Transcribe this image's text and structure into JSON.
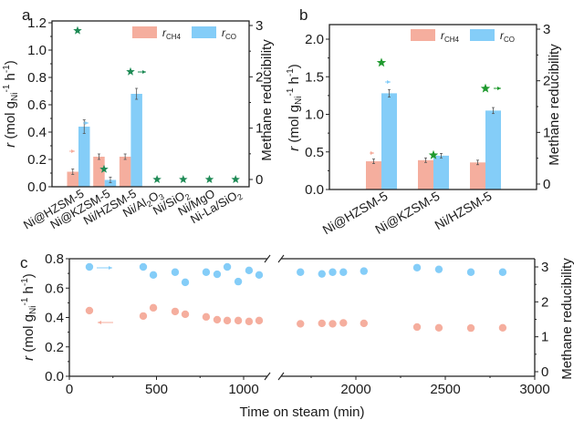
{
  "colors": {
    "ch4": "#F5AE9E",
    "co": "#84CDF8",
    "star": "#1E8A55",
    "star_b": "#1F9A2E",
    "axis": "#222222"
  },
  "chart_data": [
    {
      "panel": "a",
      "type": "bar",
      "panel_label": "a",
      "categories": [
        "Ni@HZSM-5",
        "Ni@KZSM-5",
        "Ni/HZSM-5",
        "Ni/Al2O3",
        "Ni/SiO2",
        "Ni/MgO",
        "Ni-La/SiO2"
      ],
      "category_labels": [
        {
          "main": "Ni@HZSM-5",
          "sub": ""
        },
        {
          "main": "Ni@KZSM-5",
          "sub": ""
        },
        {
          "main": "Ni/HZSM-5",
          "sub": ""
        },
        {
          "main": "Ni/Al",
          "sub": "2",
          "main2": "O",
          "sub2": "3"
        },
        {
          "main": "Ni/SiO",
          "sub": "2"
        },
        {
          "main": "Ni/MgO",
          "sub": ""
        },
        {
          "main": "Ni-La/SiO",
          "sub": "2"
        }
      ],
      "series": [
        {
          "name": "r_CH4",
          "legend_main": "r",
          "legend_sub": "CH4",
          "axis": "left",
          "values": [
            0.11,
            0.22,
            0.22,
            null,
            null,
            null,
            null
          ],
          "errors": [
            0.02,
            0.02,
            0.02,
            null,
            null,
            null,
            null
          ]
        },
        {
          "name": "r_CO",
          "legend_main": "r",
          "legend_sub": "CO",
          "axis": "left",
          "values": [
            0.44,
            0.05,
            0.68,
            null,
            null,
            null,
            null
          ],
          "errors": [
            0.05,
            0.02,
            0.04,
            null,
            null,
            null,
            null
          ]
        },
        {
          "name": "Methane reducibility",
          "marker": "star",
          "axis": "right",
          "values": [
            2.9,
            0.2,
            2.1,
            0,
            0,
            0,
            0
          ]
        }
      ],
      "ylabel": "r (mol gNi-1 h-1)",
      "ylabel_parts": {
        "r": "r",
        "unit1": " (mol g",
        "sub": "Ni",
        "sup1": "-1",
        "unit2": " h",
        "sup2": "-1",
        "close": ")"
      },
      "ylim": [
        0,
        1.2
      ],
      "yticks": [
        "0.0",
        "0.2",
        "0.4",
        "0.6",
        "0.8",
        "1.0",
        "1.2"
      ],
      "y2label": "Methane reducibility",
      "y2lim": [
        0,
        3
      ],
      "y2ticks": [
        "0",
        "1",
        "2",
        "3"
      ],
      "legend_position": "top-right"
    },
    {
      "panel": "b",
      "type": "bar",
      "panel_label": "b",
      "categories": [
        "Ni@HZSM-5",
        "Ni@KZSM-5",
        "Ni/HZSM-5"
      ],
      "series": [
        {
          "name": "r_CH4",
          "legend_main": "r",
          "legend_sub": "CH4",
          "axis": "left",
          "values": [
            0.375,
            0.39,
            0.36
          ],
          "errors": [
            0.03,
            0.03,
            0.03
          ]
        },
        {
          "name": "r_CO",
          "legend_main": "r",
          "legend_sub": "CO",
          "axis": "left",
          "values": [
            1.28,
            0.45,
            1.05
          ],
          "errors": [
            0.05,
            0.03,
            0.04
          ]
        },
        {
          "name": "Methane reducibility",
          "marker": "star",
          "axis": "right",
          "values": [
            2.35,
            0.56,
            1.85
          ]
        }
      ],
      "ylabel_parts": {
        "r": "r",
        "unit1": " (mol g",
        "sub": "Ni",
        "sup1": "-1",
        "unit2": " h",
        "sup2": "-1",
        "close": ")"
      },
      "ylim": [
        0,
        2.2
      ],
      "yticks": [
        "0.0",
        "0.5",
        "1.0",
        "1.5",
        "2.0"
      ],
      "y2label": "Methane reducibility",
      "y2lim": [
        0,
        3
      ],
      "y2ticks": [
        "0",
        "1",
        "2",
        "3"
      ],
      "legend_position": "top-right"
    },
    {
      "panel": "c",
      "type": "scatter",
      "panel_label": "c",
      "xlabel": "Time on steam (min)",
      "xlim": [
        0,
        3000
      ],
      "axis_break": [
        1135,
        1580
      ],
      "xticks": [
        "0",
        "500",
        "1000",
        "2000",
        "2500",
        "3000"
      ],
      "series": [
        {
          "name": "Methane reducibility",
          "axis": "right",
          "color_key": "co",
          "x": [
            115,
            424,
            482,
            607,
            665,
            785,
            848,
            906,
            969,
            1031,
            1089,
            1690,
            1810,
            1870,
            1930,
            2045,
            2342,
            2464,
            2643,
            2821
          ],
          "y": [
            3.0,
            3.0,
            2.77,
            2.85,
            2.56,
            2.85,
            2.79,
            3.0,
            2.58,
            2.9,
            2.77,
            2.85,
            2.8,
            2.85,
            2.85,
            2.88,
            2.98,
            2.93,
            2.85,
            2.85
          ]
        },
        {
          "name": "r",
          "axis": "left",
          "color_key": "ch4",
          "x": [
            115,
            424,
            482,
            607,
            665,
            785,
            848,
            906,
            969,
            1031,
            1089,
            1690,
            1810,
            1870,
            1930,
            2045,
            2342,
            2464,
            2643,
            2821
          ],
          "y": [
            0.447,
            0.41,
            0.466,
            0.441,
            0.422,
            0.404,
            0.385,
            0.379,
            0.379,
            0.373,
            0.379,
            0.357,
            0.36,
            0.357,
            0.363,
            0.36,
            0.335,
            0.33,
            0.328,
            0.33
          ]
        }
      ],
      "ylabel_parts": {
        "r": "r",
        "unit1": " (mol g",
        "sub": "Ni",
        "sup1": "-1",
        "unit2": " h",
        "sup2": "-1",
        "close": ")"
      },
      "ylim": [
        0,
        0.8
      ],
      "yticks": [
        "0.0",
        "0.2",
        "0.4",
        "0.6",
        "0.8"
      ],
      "y2label": "Methane reducibility",
      "y2lim": [
        0,
        3
      ],
      "y2ticks": [
        "0",
        "1",
        "2",
        "3"
      ]
    }
  ]
}
